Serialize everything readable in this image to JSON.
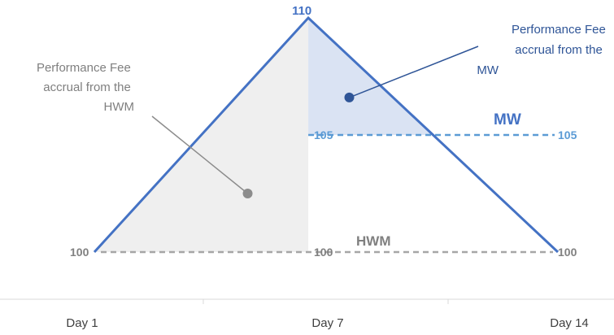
{
  "chart_data": {
    "type": "line",
    "title": "",
    "xlabel": "",
    "ylabel": "",
    "x_ticks": [
      "Day 1",
      "Day 7",
      "Day 14"
    ],
    "ylim": [
      98,
      111
    ],
    "series": [
      {
        "points": [
          [
            1,
            100
          ],
          [
            7,
            110
          ],
          [
            14,
            100
          ]
        ],
        "color": "#4472c4"
      }
    ],
    "reference_lines": {
      "hwm": {
        "name": "HWM",
        "value": 100,
        "start_label": "100",
        "mid_label": "100",
        "end_label": "100",
        "color": "#a6a6a6",
        "label_color": "#808080"
      },
      "mw": {
        "name": "MW",
        "value": 105,
        "start_label": "105",
        "end_label": "105",
        "color": "#5b9bd5",
        "label_color": "#4472c4"
      }
    },
    "peak_label": "110",
    "annotations": {
      "hwm_fee": {
        "lines": [
          "Performance Fee",
          "accrual from the",
          "HWM"
        ],
        "color": "#7f7f7f",
        "marker_at": [
          5.3,
          102.5
        ]
      },
      "mw_fee": {
        "lines": [
          "Performance Fee",
          "accrual from the",
          "MW"
        ],
        "color": "#2f5597",
        "marker_at": [
          8.15,
          106.6
        ]
      }
    },
    "shading": {
      "hwm_region_color": "#efefef",
      "mw_region_color": "#dae3f3"
    }
  }
}
